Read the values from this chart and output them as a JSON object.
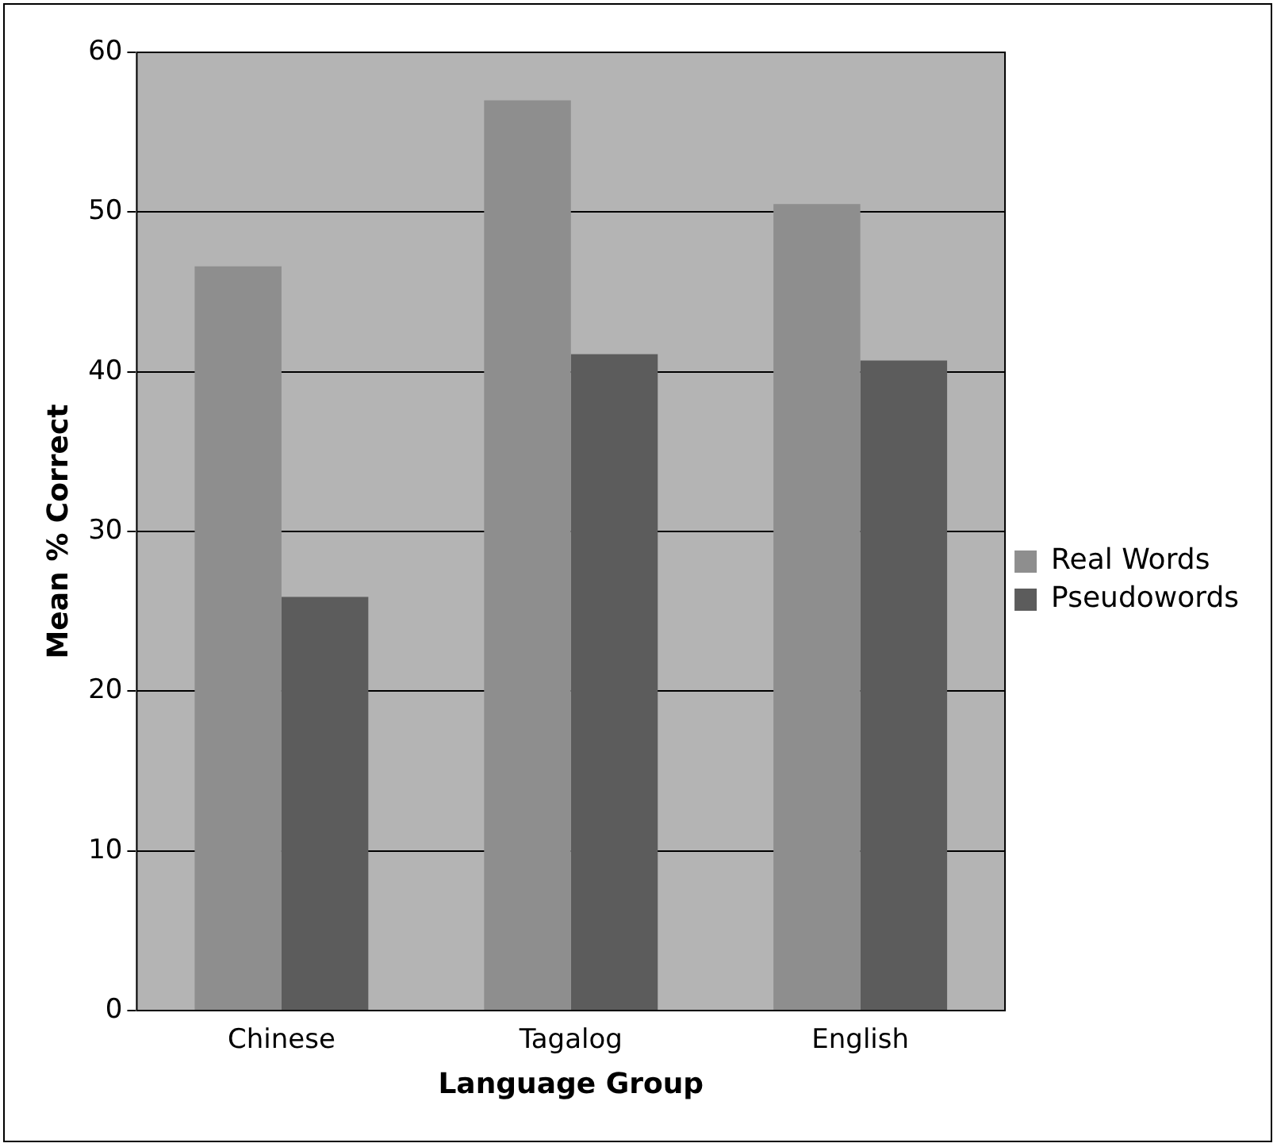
{
  "chart_data": {
    "type": "bar",
    "xlabel": "Language Group",
    "ylabel": "Mean % Correct",
    "categories": [
      "Chinese",
      "Tagalog",
      "English"
    ],
    "series": [
      {
        "name": "Real Words",
        "color": "#8e8e8e",
        "values": [
          46.6,
          57.0,
          50.5
        ]
      },
      {
        "name": "Pseudowords",
        "color": "#5c5c5c",
        "values": [
          25.9,
          41.1,
          40.7
        ]
      }
    ],
    "ylim": [
      0,
      60
    ],
    "yticks": [
      0,
      10,
      20,
      30,
      40,
      50,
      60
    ],
    "grid": "y",
    "legend": "right"
  }
}
